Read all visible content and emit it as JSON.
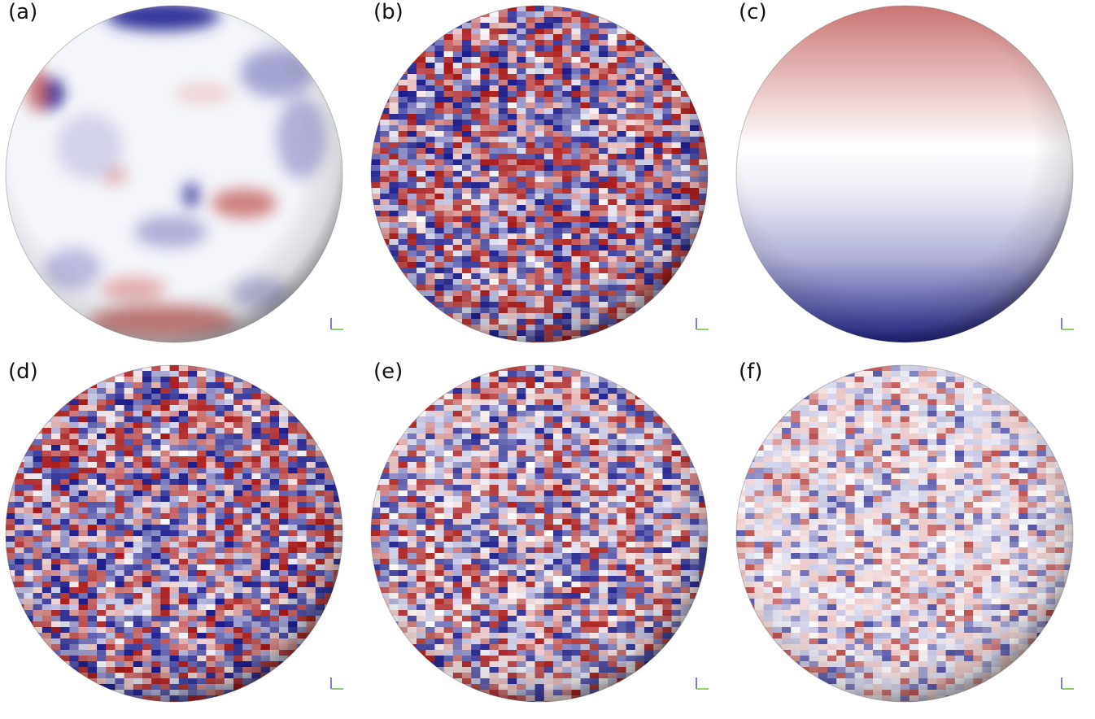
{
  "panels": [
    {
      "id": "a",
      "label": "(a)",
      "pattern": "smooth-patches"
    },
    {
      "id": "b",
      "label": "(b)",
      "pattern": "dense-noise"
    },
    {
      "id": "c",
      "label": "(c)",
      "pattern": "vertical-gradient"
    },
    {
      "id": "d",
      "label": "(d)",
      "pattern": "dense-noise"
    },
    {
      "id": "e",
      "label": "(e)",
      "pattern": "medium-noise"
    },
    {
      "id": "f",
      "label": "(f)",
      "pattern": "sparse-noise"
    }
  ],
  "colors": {
    "positive": "#a81818",
    "negative": "#1c1c8c",
    "neutral": "#ffffff",
    "axis_vertical": "#5a5ad0",
    "axis_horizontal": "#7ac043"
  },
  "icons": {
    "axes": "axes-orientation-icon"
  }
}
